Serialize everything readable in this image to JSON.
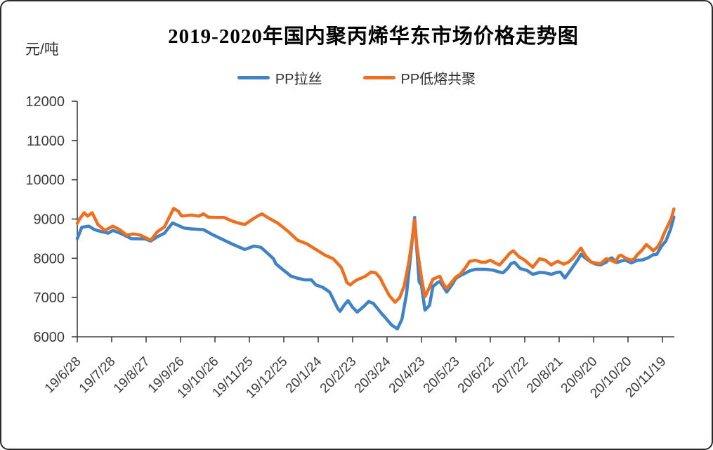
{
  "chart_data": {
    "type": "line",
    "title": "2019-2020年国内聚丙烯华东市场价格走势图",
    "unit_label": "元/吨",
    "y_axis": {
      "min": 6000,
      "max": 12000,
      "step": 1000,
      "ticks": [
        12000,
        11000,
        10000,
        9000,
        8000,
        7000,
        6000
      ]
    },
    "x_labels": [
      "19/6/28",
      "19/7/28",
      "19/8/27",
      "19/9/26",
      "19/10/26",
      "19/11/25",
      "19/12/25",
      "20/1/24",
      "20/2/23",
      "20/3/24",
      "20/4/23",
      "20/5/23",
      "20/6/22",
      "20/7/22",
      "20/8/21",
      "20/9/20",
      "20/10/20",
      "20/11/19"
    ],
    "x_interval_days": 30,
    "grid": "off",
    "legend_position": "top",
    "axis_color": "#404040",
    "series": [
      {
        "name": "PP拉丝",
        "color": "#3F83C5",
        "points": [
          [
            0,
            8500
          ],
          [
            4,
            8790
          ],
          [
            10,
            8820
          ],
          [
            15,
            8730
          ],
          [
            21,
            8680
          ],
          [
            27,
            8640
          ],
          [
            31,
            8710
          ],
          [
            39,
            8620
          ],
          [
            47,
            8500
          ],
          [
            59,
            8495
          ],
          [
            64,
            8440
          ],
          [
            70,
            8550
          ],
          [
            76,
            8640
          ],
          [
            83,
            8900
          ],
          [
            87,
            8850
          ],
          [
            93,
            8770
          ],
          [
            99,
            8750
          ],
          [
            110,
            8730
          ],
          [
            118,
            8600
          ],
          [
            128,
            8460
          ],
          [
            136,
            8350
          ],
          [
            146,
            8225
          ],
          [
            154,
            8310
          ],
          [
            160,
            8280
          ],
          [
            165,
            8150
          ],
          [
            171,
            7990
          ],
          [
            173,
            7860
          ],
          [
            178,
            7740
          ],
          [
            184,
            7600
          ],
          [
            186,
            7550
          ],
          [
            191,
            7500
          ],
          [
            198,
            7450
          ],
          [
            204,
            7450
          ],
          [
            208,
            7320
          ],
          [
            214,
            7260
          ],
          [
            220,
            7140
          ],
          [
            223,
            6960
          ],
          [
            227,
            6720
          ],
          [
            229,
            6650
          ],
          [
            233,
            6820
          ],
          [
            236,
            6920
          ],
          [
            240,
            6750
          ],
          [
            244,
            6630
          ],
          [
            250,
            6780
          ],
          [
            254,
            6900
          ],
          [
            258,
            6850
          ],
          [
            260,
            6780
          ],
          [
            265,
            6600
          ],
          [
            269,
            6470
          ],
          [
            274,
            6300
          ],
          [
            279,
            6200
          ],
          [
            283,
            6450
          ],
          [
            287,
            7100
          ],
          [
            291,
            8200
          ],
          [
            294,
            9040
          ],
          [
            296,
            8200
          ],
          [
            298,
            7400
          ],
          [
            300,
            7310
          ],
          [
            303,
            6680
          ],
          [
            307,
            6800
          ],
          [
            310,
            7280
          ],
          [
            314,
            7380
          ],
          [
            316,
            7410
          ],
          [
            319,
            7280
          ],
          [
            322,
            7140
          ],
          [
            326,
            7300
          ],
          [
            330,
            7490
          ],
          [
            334,
            7560
          ],
          [
            338,
            7620
          ],
          [
            342,
            7680
          ],
          [
            347,
            7720
          ],
          [
            356,
            7720
          ],
          [
            362,
            7700
          ],
          [
            368,
            7650
          ],
          [
            371,
            7630
          ],
          [
            375,
            7740
          ],
          [
            378,
            7860
          ],
          [
            381,
            7900
          ],
          [
            386,
            7740
          ],
          [
            392,
            7690
          ],
          [
            397,
            7590
          ],
          [
            403,
            7640
          ],
          [
            408,
            7630
          ],
          [
            413,
            7590
          ],
          [
            418,
            7640
          ],
          [
            421,
            7650
          ],
          [
            425,
            7500
          ],
          [
            430,
            7700
          ],
          [
            436,
            7950
          ],
          [
            439,
            8100
          ],
          [
            443,
            8000
          ],
          [
            448,
            7900
          ],
          [
            452,
            7850
          ],
          [
            456,
            7830
          ],
          [
            461,
            7900
          ],
          [
            464,
            7990
          ],
          [
            466,
            8010
          ],
          [
            470,
            7890
          ],
          [
            474,
            7930
          ],
          [
            478,
            7950
          ],
          [
            483,
            7880
          ],
          [
            488,
            7950
          ],
          [
            493,
            7960
          ],
          [
            498,
            8020
          ],
          [
            502,
            8090
          ],
          [
            505,
            8100
          ],
          [
            509,
            8300
          ],
          [
            513,
            8440
          ],
          [
            517,
            8730
          ],
          [
            520,
            9050
          ]
        ]
      },
      {
        "name": "PP低熔共聚",
        "color": "#ED7021",
        "points": [
          [
            0,
            8890
          ],
          [
            2,
            9000
          ],
          [
            6,
            9160
          ],
          [
            9,
            9075
          ],
          [
            13,
            9160
          ],
          [
            18,
            8860
          ],
          [
            24,
            8710
          ],
          [
            31,
            8820
          ],
          [
            37,
            8730
          ],
          [
            43,
            8590
          ],
          [
            49,
            8620
          ],
          [
            55,
            8590
          ],
          [
            64,
            8460
          ],
          [
            70,
            8680
          ],
          [
            76,
            8800
          ],
          [
            84,
            9270
          ],
          [
            88,
            9200
          ],
          [
            91,
            9075
          ],
          [
            99,
            9100
          ],
          [
            106,
            9075
          ],
          [
            110,
            9130
          ],
          [
            114,
            9050
          ],
          [
            121,
            9040
          ],
          [
            128,
            9040
          ],
          [
            134,
            8960
          ],
          [
            140,
            8900
          ],
          [
            146,
            8860
          ],
          [
            153,
            9000
          ],
          [
            158,
            9090
          ],
          [
            161,
            9130
          ],
          [
            166,
            9040
          ],
          [
            175,
            8890
          ],
          [
            184,
            8680
          ],
          [
            192,
            8460
          ],
          [
            200,
            8370
          ],
          [
            208,
            8225
          ],
          [
            216,
            8080
          ],
          [
            223,
            7990
          ],
          [
            230,
            7770
          ],
          [
            233,
            7550
          ],
          [
            235,
            7380
          ],
          [
            238,
            7320
          ],
          [
            242,
            7420
          ],
          [
            245,
            7465
          ],
          [
            251,
            7540
          ],
          [
            256,
            7650
          ],
          [
            260,
            7630
          ],
          [
            264,
            7500
          ],
          [
            267,
            7320
          ],
          [
            272,
            7050
          ],
          [
            277,
            6880
          ],
          [
            281,
            7000
          ],
          [
            285,
            7300
          ],
          [
            289,
            7900
          ],
          [
            292,
            8500
          ],
          [
            294,
            8980
          ],
          [
            296,
            8300
          ],
          [
            298,
            7900
          ],
          [
            300,
            7500
          ],
          [
            303,
            7020
          ],
          [
            306,
            7200
          ],
          [
            310,
            7465
          ],
          [
            314,
            7520
          ],
          [
            316,
            7540
          ],
          [
            319,
            7350
          ],
          [
            322,
            7230
          ],
          [
            326,
            7380
          ],
          [
            330,
            7520
          ],
          [
            334,
            7600
          ],
          [
            338,
            7750
          ],
          [
            342,
            7920
          ],
          [
            347,
            7950
          ],
          [
            352,
            7900
          ],
          [
            356,
            7900
          ],
          [
            360,
            7950
          ],
          [
            365,
            7870
          ],
          [
            368,
            7830
          ],
          [
            373,
            7990
          ],
          [
            377,
            8130
          ],
          [
            380,
            8190
          ],
          [
            385,
            8040
          ],
          [
            390,
            7950
          ],
          [
            392,
            7900
          ],
          [
            397,
            7770
          ],
          [
            400,
            7880
          ],
          [
            403,
            7990
          ],
          [
            408,
            7950
          ],
          [
            413,
            7830
          ],
          [
            417,
            7900
          ],
          [
            419,
            7920
          ],
          [
            424,
            7850
          ],
          [
            428,
            7900
          ],
          [
            432,
            8000
          ],
          [
            436,
            8150
          ],
          [
            439,
            8260
          ],
          [
            443,
            8060
          ],
          [
            448,
            7900
          ],
          [
            452,
            7880
          ],
          [
            456,
            7860
          ],
          [
            461,
            7990
          ],
          [
            465,
            7950
          ],
          [
            469,
            7900
          ],
          [
            472,
            8060
          ],
          [
            474,
            8080
          ],
          [
            478,
            8000
          ],
          [
            483,
            7950
          ],
          [
            486,
            8000
          ],
          [
            488,
            8090
          ],
          [
            492,
            8200
          ],
          [
            496,
            8350
          ],
          [
            500,
            8250
          ],
          [
            502,
            8190
          ],
          [
            506,
            8300
          ],
          [
            509,
            8450
          ],
          [
            511,
            8600
          ],
          [
            515,
            8850
          ],
          [
            518,
            9040
          ],
          [
            520,
            9255
          ]
        ]
      }
    ]
  }
}
